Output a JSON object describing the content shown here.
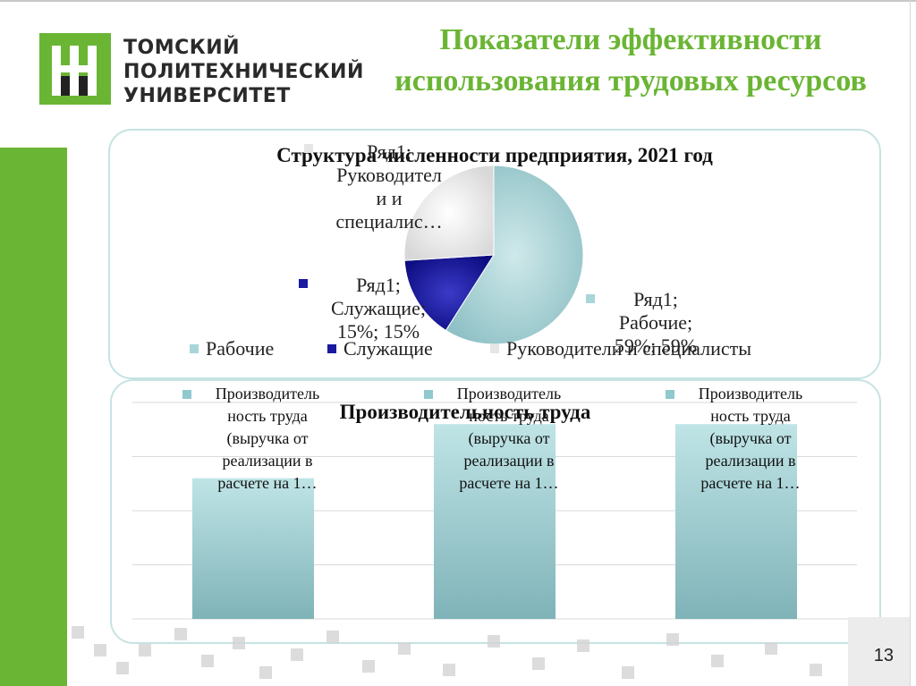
{
  "header": {
    "logo_lines": [
      "ТОМСКИЙ",
      "ПОЛИТЕХНИЧЕСКИЙ",
      "УНИВЕРСИТЕТ"
    ],
    "title_line1": "Показатели эффективности",
    "title_line2": "использования трудовых ресурсов"
  },
  "page_number": "13",
  "colors": {
    "green": "#6ab534",
    "workers": "#a8d6d9",
    "employees": "#1a1aa0",
    "managers": "#e6e6e6"
  },
  "chart_data": [
    {
      "type": "pie",
      "title": "Структура численности предприятия, 2021 год",
      "series_name": "Ряд1",
      "categories": [
        "Рабочие",
        "Служащие",
        "Руководители и специалисты"
      ],
      "values": [
        59,
        15,
        26
      ],
      "labels": {
        "workers": [
          "Ряд1;",
          "Рабочие;",
          "59%; 59%"
        ],
        "employees": [
          "Ряд1;",
          "Служащие;",
          "15%; 15%"
        ],
        "managers": [
          "Ряд1;",
          "Руководител",
          "и и",
          "специалис…"
        ]
      },
      "legend": [
        "Рабочие",
        "Служащие",
        "Руководители и специалисты"
      ],
      "legend_position": "bottom"
    },
    {
      "type": "bar",
      "title": "Производительность труда",
      "series_name": "Производительность труда (выручка от реализации в расчете на 1…",
      "bar_label_lines": [
        "Производитель",
        "ность труда",
        "(выручка от",
        "реализации в",
        "расчете на 1…"
      ],
      "categories": [
        "",
        "",
        ""
      ],
      "values": [
        0.65,
        0.9,
        0.9
      ],
      "ylim": [
        0,
        1
      ],
      "grid": true
    }
  ]
}
